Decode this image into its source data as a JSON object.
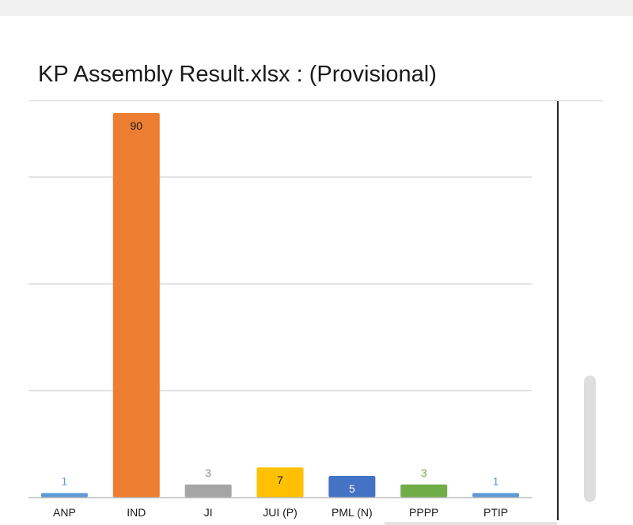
{
  "window": {
    "title": "KP Assembly Result.xlsx : (Provisional)"
  },
  "chart_data": {
    "type": "bar",
    "title": "",
    "xlabel": "",
    "ylabel": "",
    "categories": [
      "ANP",
      "IND",
      "JI",
      "JUI (P)",
      "PML (N)",
      "PPPP",
      "PTIP"
    ],
    "values": [
      1,
      90,
      3,
      7,
      5,
      3,
      1
    ],
    "colors": [
      "#5b9bd5",
      "#ed7d31",
      "#a5a5a5",
      "#ffc000",
      "#4472c4",
      "#70ad47",
      "#5b9bd5"
    ],
    "label_colors": [
      "#5b9bd5",
      "#1a1a1a",
      "#8c8c8c",
      "#1a1a1a",
      "#ffffff",
      "#70ad47",
      "#5b9bd5"
    ],
    "label_inside": [
      false,
      true,
      false,
      true,
      true,
      false,
      false
    ],
    "ylim": [
      0,
      100
    ],
    "gridlines": [
      25,
      50,
      75,
      100
    ],
    "grid": true,
    "legend": "none"
  }
}
